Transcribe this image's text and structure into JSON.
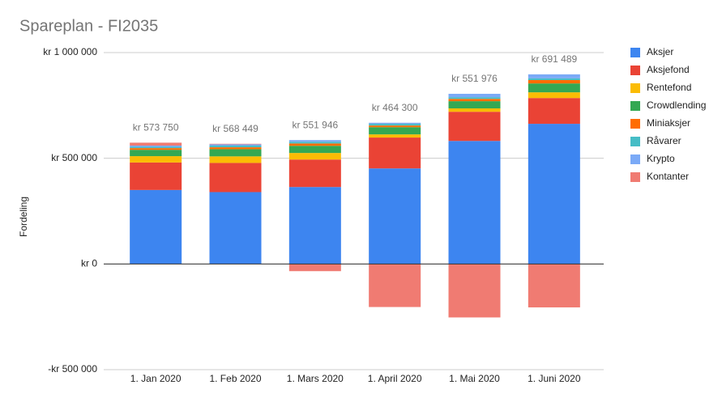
{
  "chart_data": {
    "type": "stacked_bar",
    "title": "Spareplan - FI2035",
    "y_label": "Fordeling",
    "categories": [
      "1. Jan 2020",
      "1. Feb 2020",
      "1. Mars 2020",
      "1. April 2020",
      "1. Mai 2020",
      "1. Juni 2020"
    ],
    "series": [
      {
        "name": "Aksjer",
        "color": "#3d85f0",
        "values": [
          350000,
          340000,
          364000,
          452000,
          582000,
          663000
        ]
      },
      {
        "name": "Aksjefond",
        "color": "#ea4335",
        "values": [
          130000,
          138000,
          130000,
          146000,
          138000,
          122000
        ]
      },
      {
        "name": "Rentefond",
        "color": "#fbbc04",
        "values": [
          30000,
          31000,
          31000,
          15000,
          16000,
          27000
        ]
      },
      {
        "name": "Crowdlending",
        "color": "#34a853",
        "values": [
          30000,
          34000,
          34000,
          34000,
          34000,
          42000
        ]
      },
      {
        "name": "Miniaksjer",
        "color": "#ff6d01",
        "values": [
          8000,
          9000,
          11000,
          8000,
          11000,
          16000
        ]
      },
      {
        "name": "Råvarer",
        "color": "#46bdc6",
        "values": [
          6000,
          8000,
          8000,
          8000,
          8000,
          8000
        ]
      },
      {
        "name": "Krypto",
        "color": "#7baaf7",
        "values": [
          6000,
          6000,
          8000,
          5000,
          16000,
          19000
        ]
      },
      {
        "name": "Kontanter",
        "color": "#f07b72",
        "values": [
          13750,
          2449,
          -34054,
          -203700,
          -253024,
          -205511
        ]
      }
    ],
    "totals": {
      "values": [
        573750,
        568449,
        551946,
        464300,
        551976,
        691489
      ],
      "value_labels": [
        "kr  573 750",
        "kr  568 449",
        "kr  551 946",
        "kr  464 300",
        "kr  551 976",
        "kr  691 489"
      ]
    },
    "ylim": [
      -500000,
      1000000
    ],
    "yticks": [
      {
        "value": -500000,
        "label": "-kr  500 000"
      },
      {
        "value": 0,
        "label": "kr   0"
      },
      {
        "value": 500000,
        "label": "kr 500 000"
      },
      {
        "value": 1000000,
        "label": "kr 1 000 000"
      }
    ],
    "grid": true,
    "legend": "right"
  }
}
